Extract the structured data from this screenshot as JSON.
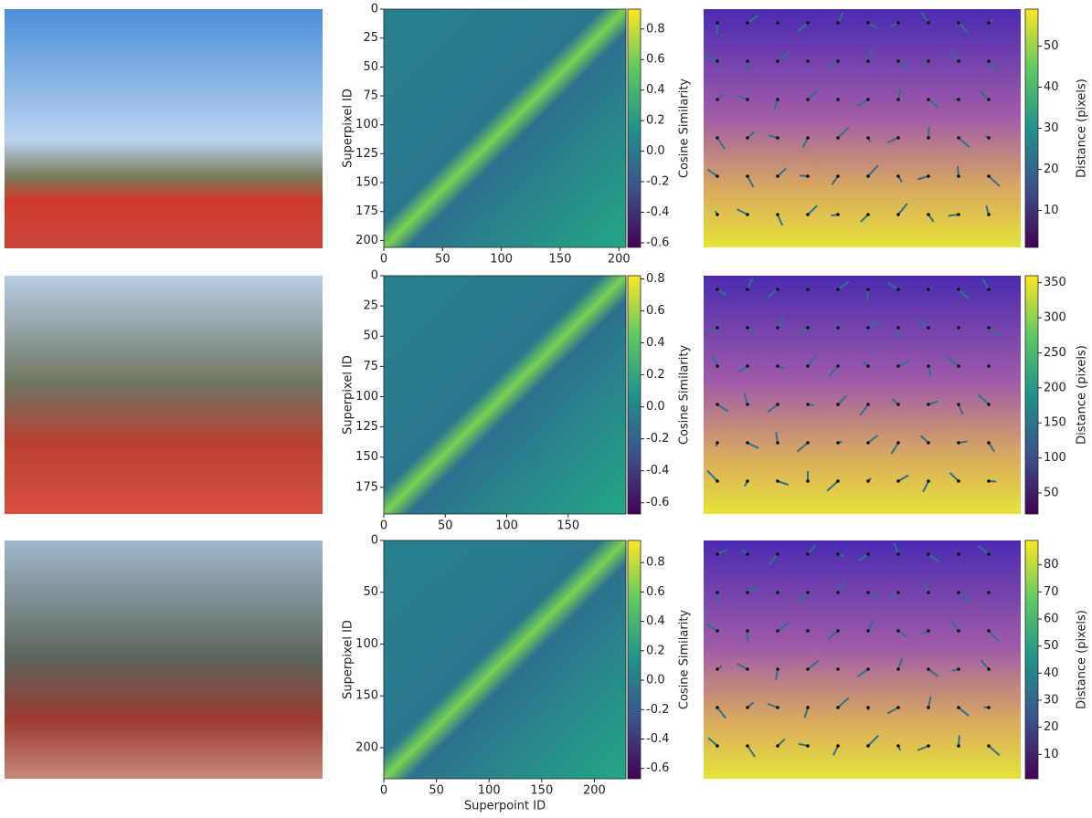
{
  "chart_data": [
    {
      "type": "heatmap",
      "ylabel": "Superpixel ID",
      "xlim": [
        0,
        206
      ],
      "ylim": [
        206,
        0
      ],
      "xticks": [
        0,
        50,
        100,
        150,
        200
      ],
      "yticks": [
        0,
        25,
        50,
        75,
        100,
        125,
        150,
        175,
        200
      ],
      "clim": [
        -0.63,
        0.93
      ],
      "cticks": [
        -0.6,
        -0.4,
        -0.2,
        {
          "value": 0,
          "label": "0.0"
        },
        0.2,
        0.4,
        0.6,
        0.8
      ],
      "colorbar_label": "Cosine Similarity"
    },
    {
      "type": "flow",
      "clim": [
        1,
        59
      ],
      "cticks": [
        10,
        20,
        30,
        40,
        50
      ],
      "colorbar_label": "Distance (pixels)"
    },
    {
      "type": "heatmap",
      "ylabel": "Superpixel ID",
      "xlim": [
        0,
        197
      ],
      "ylim": [
        197,
        0
      ],
      "xticks": [
        0,
        50,
        100,
        150
      ],
      "yticks": [
        0,
        25,
        50,
        75,
        100,
        125,
        150,
        175
      ],
      "clim": [
        -0.67,
        0.82
      ],
      "cticks": [
        -0.6,
        -0.4,
        -0.2,
        {
          "value": 0,
          "label": "0.0"
        },
        0.2,
        0.4,
        0.6,
        0.8
      ],
      "colorbar_label": "Cosine Similarity"
    },
    {
      "type": "flow",
      "clim": [
        20,
        360
      ],
      "cticks": [
        50,
        100,
        150,
        200,
        250,
        300,
        350
      ],
      "colorbar_label": "Distance (pixels)"
    },
    {
      "type": "heatmap",
      "ylabel": "Superpixel ID",
      "xlabel": "Superpoint ID",
      "xlim": [
        0,
        230
      ],
      "ylim": [
        230,
        0
      ],
      "xticks": [
        0,
        50,
        100,
        150,
        200
      ],
      "yticks": [
        0,
        50,
        100,
        150,
        200
      ],
      "clim": [
        -0.67,
        0.95
      ],
      "cticks": [
        -0.6,
        -0.4,
        -0.2,
        {
          "value": 0,
          "label": "0.0"
        },
        0.2,
        0.4,
        0.6,
        0.8
      ],
      "colorbar_label": "Cosine Similarity"
    },
    {
      "type": "flow",
      "clim": [
        1,
        89
      ],
      "cticks": [
        10,
        20,
        30,
        40,
        50,
        60,
        70,
        80
      ],
      "colorbar_label": "Distance (pixels)"
    }
  ]
}
